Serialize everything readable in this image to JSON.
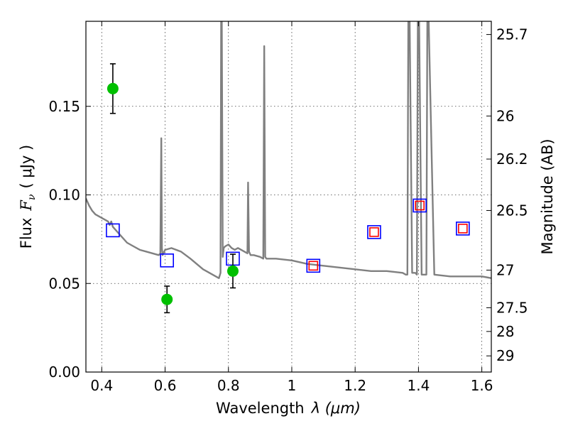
{
  "chart_data": {
    "type": "line",
    "title": "",
    "xlabel_text": "Wavelength",
    "xlabel_math": "λ (μm)",
    "ylabel_text": "Flux",
    "ylabel_math": "F",
    "ylabel_sub": "ν",
    "ylabel_unit": "( μJy )",
    "y2label": "Magnitude (AB)",
    "xlim": [
      0.35,
      1.63
    ],
    "ylim": [
      0.0,
      0.198
    ],
    "grid": true,
    "x_ticks": [
      {
        "value": 0.4,
        "label": "0.4"
      },
      {
        "value": 0.6,
        "label": "0.6"
      },
      {
        "value": 0.8,
        "label": "0.8"
      },
      {
        "value": 1.0,
        "label": "1"
      },
      {
        "value": 1.2,
        "label": "1.2"
      },
      {
        "value": 1.4,
        "label": "1.4"
      },
      {
        "value": 1.6,
        "label": "1.6"
      }
    ],
    "y_ticks": [
      {
        "value": 0.0,
        "label": "0.00"
      },
      {
        "value": 0.05,
        "label": "0.05"
      },
      {
        "value": 0.1,
        "label": "0.10"
      },
      {
        "value": 0.15,
        "label": "0.15"
      }
    ],
    "y2_ticks": [
      {
        "mag": 25.7,
        "label": "25.7"
      },
      {
        "mag": 26.0,
        "label": "26"
      },
      {
        "mag": 26.2,
        "label": "26.2"
      },
      {
        "mag": 26.5,
        "label": "26.5"
      },
      {
        "mag": 27.0,
        "label": "27"
      },
      {
        "mag": 27.5,
        "label": "27.5"
      },
      {
        "mag": 28.0,
        "label": "28"
      },
      {
        "mag": 29.0,
        "label": "29"
      }
    ],
    "mag_zeropoint": 23.9,
    "series": [
      {
        "kind": "line",
        "color": "#808080",
        "x": [
          0.35,
          0.36,
          0.37,
          0.38,
          0.39,
          0.4,
          0.41,
          0.42,
          0.425,
          0.43,
          0.435,
          0.44,
          0.45,
          0.46,
          0.48,
          0.5,
          0.52,
          0.54,
          0.56,
          0.58,
          0.585,
          0.588,
          0.59,
          0.592,
          0.6,
          0.62,
          0.65,
          0.68,
          0.7,
          0.72,
          0.74,
          0.76,
          0.77,
          0.775,
          0.777,
          0.779,
          0.782,
          0.785,
          0.79,
          0.8,
          0.81,
          0.82,
          0.83,
          0.84,
          0.85,
          0.86,
          0.862,
          0.865,
          0.87,
          0.88,
          0.9,
          0.91,
          0.913,
          0.916,
          0.92,
          0.95,
          1.0,
          1.05,
          1.1,
          1.15,
          1.2,
          1.25,
          1.3,
          1.35,
          1.36,
          1.365,
          1.368,
          1.372,
          1.38,
          1.39,
          1.395,
          1.398,
          1.402,
          1.41,
          1.42,
          1.425,
          1.428,
          1.432,
          1.45,
          1.5,
          1.55,
          1.6,
          1.63
        ],
        "y": [
          0.098,
          0.094,
          0.091,
          0.089,
          0.088,
          0.087,
          0.086,
          0.085,
          0.083,
          0.085,
          0.082,
          0.081,
          0.079,
          0.077,
          0.073,
          0.071,
          0.069,
          0.068,
          0.067,
          0.066,
          0.067,
          0.132,
          0.07,
          0.066,
          0.069,
          0.07,
          0.068,
          0.064,
          0.061,
          0.058,
          0.056,
          0.054,
          0.053,
          0.056,
          0.2,
          0.2,
          0.065,
          0.07,
          0.071,
          0.072,
          0.07,
          0.069,
          0.07,
          0.069,
          0.068,
          0.067,
          0.107,
          0.068,
          0.066,
          0.066,
          0.065,
          0.064,
          0.184,
          0.065,
          0.064,
          0.064,
          0.063,
          0.061,
          0.06,
          0.059,
          0.058,
          0.057,
          0.057,
          0.056,
          0.055,
          0.055,
          0.2,
          0.2,
          0.056,
          0.056,
          0.055,
          0.2,
          0.2,
          0.055,
          0.055,
          0.055,
          0.2,
          0.2,
          0.055,
          0.054,
          0.054,
          0.054,
          0.053
        ]
      },
      {
        "kind": "points",
        "marker": "square",
        "color": "#0000ff",
        "x": [
          0.435,
          0.606,
          0.814,
          1.068,
          1.26,
          1.404,
          1.54
        ],
        "y": [
          0.08,
          0.063,
          0.064,
          0.06,
          0.079,
          0.094,
          0.081
        ]
      },
      {
        "kind": "points",
        "marker": "square",
        "color": "#ff0000",
        "x": [
          1.068,
          1.26,
          1.404,
          1.54
        ],
        "y": [
          0.06,
          0.079,
          0.094,
          0.081
        ]
      },
      {
        "kind": "points",
        "marker": "circle",
        "color": "#00c000",
        "x": [
          0.435,
          0.606,
          0.814
        ],
        "y": [
          0.16,
          0.041,
          0.057
        ],
        "yerr": [
          0.014,
          0.0075,
          0.0095
        ]
      }
    ]
  }
}
